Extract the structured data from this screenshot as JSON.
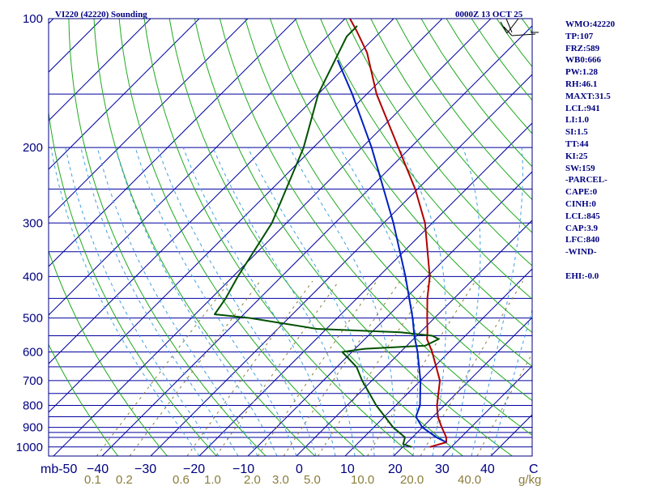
{
  "header": {
    "title": "VI220 (42220) Sounding",
    "time": "0000Z 13 OCT 25"
  },
  "sidebar": {
    "lines": [
      "WMO:42220",
      "TP:107",
      "FRZ:589",
      "WB0:666",
      "PW:1.28",
      "RH:46.1",
      "MAXT:31.5",
      "LCL:941",
      "LI:1.0",
      "SI:1.5",
      "TT:44",
      "KI:25",
      "SW:159",
      "-PARCEL-",
      "CAPE:0",
      "CINH:0",
      "LCL:845",
      "CAP:3.9",
      "LFC:840",
      "-WIND-",
      "",
      "EHI:-0.0"
    ]
  },
  "colors": {
    "isobar": "#0000a0",
    "isotherm": "#0000a0",
    "dry_adiabat": "#1faa1f",
    "moist_adiabat": "#40a0e0",
    "mixing_ratio": "#8b7d3a",
    "temperature": "#b00000",
    "dewpoint": "#005000",
    "parcel": "#0020c0",
    "text": "#000080"
  },
  "chart_data": {
    "type": "skew-t",
    "y_unit": "mb",
    "x_unit": "C",
    "mixing_ratio_unit": "g/kg",
    "pressure_ticks": [
      100,
      200,
      300,
      400,
      500,
      600,
      700,
      800,
      900,
      1000
    ],
    "pressure_ticks_labels": [
      "100",
      "200",
      "300",
      "400",
      "500",
      "600",
      "700",
      "800",
      "900",
      "1000"
    ],
    "isobars": [
      100,
      150,
      200,
      250,
      300,
      350,
      400,
      450,
      500,
      550,
      600,
      650,
      700,
      750,
      800,
      850,
      900,
      925,
      950,
      1000
    ],
    "temperature_ticks": [
      -50,
      -40,
      -30,
      -20,
      -10,
      0,
      10,
      20,
      30,
      40
    ],
    "temperature_tick_labels": [
      "mb-50",
      "−40",
      "−30",
      "−20",
      "−10",
      "0",
      "10",
      "20",
      "30",
      "40",
      "C"
    ],
    "mixing_ratio_labels": [
      "0.1",
      "0.2",
      "0.6",
      "1.0",
      "2.0",
      "3.0",
      "5.0",
      "10.0",
      "20.0",
      "40.0",
      "g/kg"
    ],
    "mixing_ratio_values": [
      0.1,
      0.2,
      0.6,
      1.0,
      2.0,
      3.0,
      5.0,
      10.0,
      20.0,
      40.0
    ],
    "series": [
      {
        "role": "temperature",
        "points": [
          [
            1000,
            25.6
          ],
          [
            975,
            28.0
          ],
          [
            950,
            27.0
          ],
          [
            900,
            24.0
          ],
          [
            850,
            21.0
          ],
          [
            800,
            18.5
          ],
          [
            700,
            14.0
          ],
          [
            600,
            6.5
          ],
          [
            560,
            2.8
          ],
          [
            540,
            1.5
          ],
          [
            500,
            -1.5
          ],
          [
            450,
            -5.5
          ],
          [
            400,
            -9.5
          ],
          [
            300,
            -21.5
          ],
          [
            250,
            -30.5
          ],
          [
            200,
            -42.5
          ],
          [
            150,
            -58.0
          ],
          [
            120,
            -68.5
          ],
          [
            107,
            -75.0
          ],
          [
            100,
            -79.0
          ]
        ]
      },
      {
        "role": "dewpoint",
        "points": [
          [
            1000,
            21.8
          ],
          [
            985,
            19.5
          ],
          [
            950,
            18.5
          ],
          [
            900,
            14.0
          ],
          [
            800,
            6.0
          ],
          [
            700,
            -2.0
          ],
          [
            650,
            -6.0
          ],
          [
            600,
            -12.0
          ],
          [
            590,
            -8.0
          ],
          [
            580,
            3.8
          ],
          [
            560,
            5.2
          ],
          [
            550,
            3.2
          ],
          [
            540,
            -4.0
          ],
          [
            530,
            -22.0
          ],
          [
            500,
            -38.0
          ],
          [
            490,
            -46.0
          ],
          [
            450,
            -47.0
          ],
          [
            400,
            -49.0
          ],
          [
            300,
            -53.0
          ],
          [
            200,
            -62.0
          ],
          [
            150,
            -70.0
          ],
          [
            110,
            -76.0
          ],
          [
            104,
            -76.0
          ]
        ]
      },
      {
        "role": "parcel",
        "points": [
          [
            975,
            28.0
          ],
          [
            950,
            25.0
          ],
          [
            900,
            20.0
          ],
          [
            850,
            16.5
          ],
          [
            800,
            15.0
          ],
          [
            700,
            10.0
          ],
          [
            600,
            3.5
          ],
          [
            550,
            -0.5
          ],
          [
            500,
            -4.5
          ],
          [
            400,
            -14.5
          ],
          [
            300,
            -28.0
          ],
          [
            200,
            -48.0
          ],
          [
            150,
            -63.0
          ],
          [
            125,
            -73.0
          ]
        ]
      }
    ],
    "wind_barbs_visible": true
  }
}
